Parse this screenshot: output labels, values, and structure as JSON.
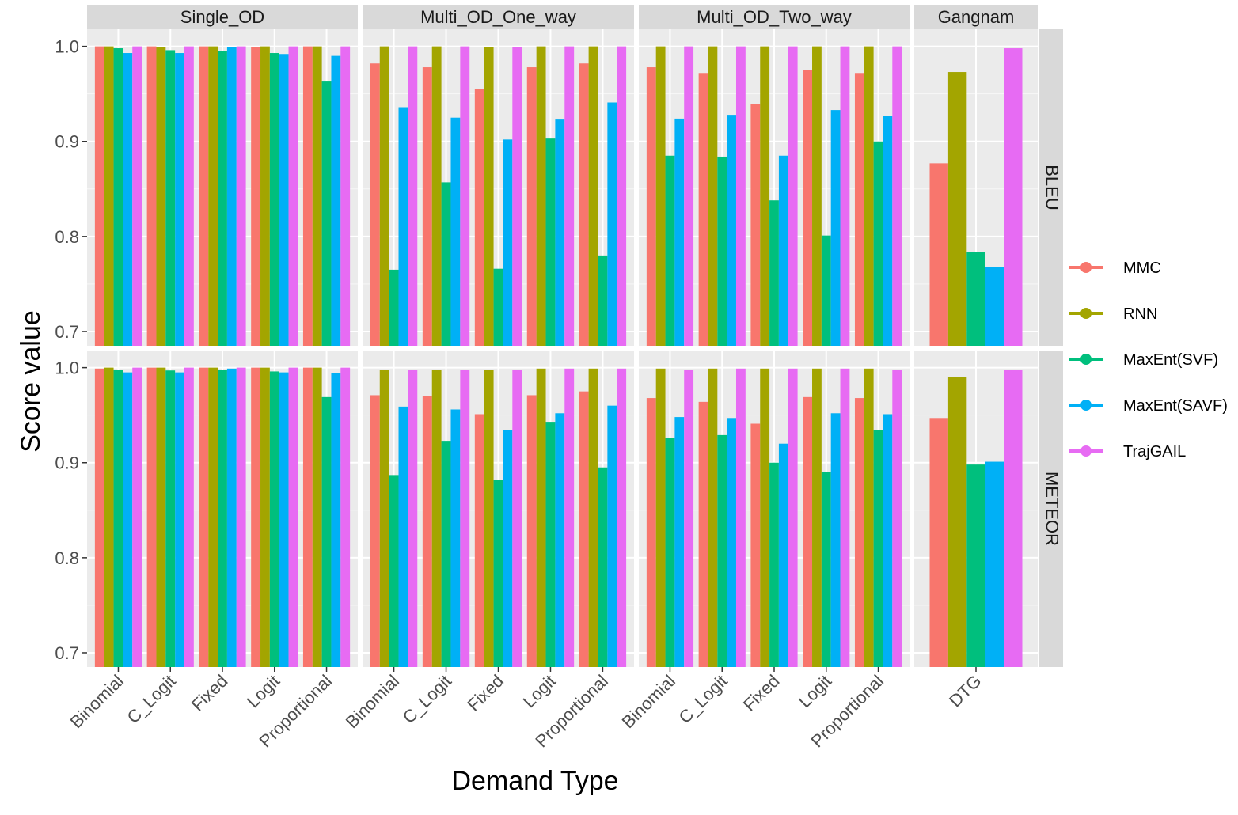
{
  "chart_data": {
    "type": "bar",
    "title": "",
    "xlabel": "Demand Type",
    "ylabel": "Score value",
    "ylim": [
      0.685,
      1.018
    ],
    "yticks": [
      0.7,
      0.8,
      0.9,
      1.0
    ],
    "ytick_labels": [
      "0.7",
      "0.8",
      "0.9",
      "1.0"
    ],
    "grid": true,
    "legend_position": "right",
    "colors": {
      "MMC": "#F8766D",
      "RNN": "#A3A500",
      "MaxEnt(SVF)": "#00BF7D",
      "MaxEnt(SAVF)": "#00B0F6",
      "TrajGAIL": "#E76BF3"
    },
    "series_names": [
      "MMC",
      "RNN",
      "MaxEnt(SVF)",
      "MaxEnt(SAVF)",
      "TrajGAIL"
    ],
    "metrics": [
      "BLEU",
      "METEOR"
    ],
    "panels": [
      {
        "name": "Single_OD",
        "categories": [
          "Binomial",
          "C_Logit",
          "Fixed",
          "Logit",
          "Proportional"
        ],
        "BLEU": [
          [
            1.0,
            1.0,
            0.998,
            0.993,
            1.0
          ],
          [
            1.0,
            0.999,
            0.996,
            0.993,
            1.0
          ],
          [
            1.0,
            1.0,
            0.995,
            0.999,
            1.0
          ],
          [
            0.999,
            1.0,
            0.993,
            0.992,
            1.0
          ],
          [
            1.0,
            1.0,
            0.963,
            0.99,
            1.0
          ]
        ],
        "METEOR": [
          [
            0.999,
            1.0,
            0.998,
            0.995,
            1.0
          ],
          [
            1.0,
            1.0,
            0.997,
            0.995,
            1.0
          ],
          [
            1.0,
            1.0,
            0.998,
            0.999,
            1.0
          ],
          [
            1.0,
            1.0,
            0.996,
            0.995,
            1.0
          ],
          [
            1.0,
            1.0,
            0.969,
            0.994,
            1.0
          ]
        ]
      },
      {
        "name": "Multi_OD_One_way",
        "categories": [
          "Binomial",
          "C_Logit",
          "Fixed",
          "Logit",
          "Proportional"
        ],
        "BLEU": [
          [
            0.982,
            1.0,
            0.765,
            0.936,
            1.0
          ],
          [
            0.978,
            1.0,
            0.857,
            0.925,
            1.0
          ],
          [
            0.955,
            0.999,
            0.766,
            0.902,
            0.999
          ],
          [
            0.978,
            1.0,
            0.903,
            0.923,
            1.0
          ],
          [
            0.982,
            1.0,
            0.78,
            0.941,
            1.0
          ]
        ],
        "METEOR": [
          [
            0.971,
            0.998,
            0.887,
            0.959,
            0.998
          ],
          [
            0.97,
            0.998,
            0.923,
            0.956,
            0.998
          ],
          [
            0.951,
            0.998,
            0.882,
            0.934,
            0.998
          ],
          [
            0.971,
            0.999,
            0.943,
            0.952,
            0.999
          ],
          [
            0.975,
            0.999,
            0.895,
            0.96,
            0.999
          ]
        ]
      },
      {
        "name": "Multi_OD_Two_way",
        "categories": [
          "Binomial",
          "C_Logit",
          "Fixed",
          "Logit",
          "Proportional"
        ],
        "BLEU": [
          [
            0.978,
            1.0,
            0.885,
            0.924,
            1.0
          ],
          [
            0.972,
            1.0,
            0.884,
            0.928,
            1.0
          ],
          [
            0.939,
            1.0,
            0.838,
            0.885,
            1.0
          ],
          [
            0.975,
            1.0,
            0.801,
            0.933,
            1.0
          ],
          [
            0.972,
            1.0,
            0.9,
            0.927,
            1.0
          ]
        ],
        "METEOR": [
          [
            0.968,
            0.999,
            0.926,
            0.948,
            0.998
          ],
          [
            0.964,
            0.999,
            0.929,
            0.947,
            0.999
          ],
          [
            0.941,
            0.999,
            0.9,
            0.92,
            0.999
          ],
          [
            0.969,
            0.999,
            0.89,
            0.952,
            0.999
          ],
          [
            0.968,
            0.999,
            0.934,
            0.951,
            0.998
          ]
        ]
      },
      {
        "name": "Gangnam",
        "categories": [
          "DTG"
        ],
        "BLEU": [
          [
            0.877,
            0.973,
            0.784,
            0.768,
            0.998
          ]
        ],
        "METEOR": [
          [
            0.947,
            0.99,
            0.898,
            0.901,
            0.998
          ]
        ]
      }
    ]
  }
}
